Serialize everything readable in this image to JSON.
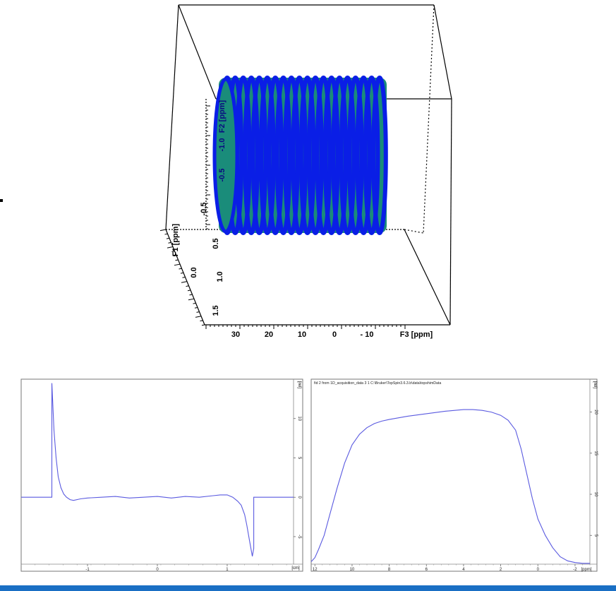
{
  "colors": {
    "cylinder_blue": "#0a1ee6",
    "cylinder_teal": "#1a8c7a",
    "trace_blue": "#5a5ae0",
    "accent_bar": "#1a6fc4"
  },
  "chart_data": [
    {
      "type": "surface-3d",
      "title": "",
      "axes": {
        "f3": {
          "label": "F3 [ppm]",
          "ticks": [
            "30",
            "20",
            "10",
            "0",
            "- 10"
          ]
        },
        "f1": {
          "label": "F1 [ppm]",
          "ticks": [
            "-0.5",
            "0.0",
            "0.5",
            "1.0",
            "1.5"
          ]
        },
        "f2": {
          "label": "F2 [ppm]",
          "ticks": [
            "-1.0",
            "-0.5"
          ]
        }
      },
      "ring_count": 20
    },
    {
      "type": "line",
      "title": "",
      "xlabel": "[cm]",
      "ylabel": "[rel]",
      "xlim": [
        -1.95,
        1.95
      ],
      "ylim": [
        -8.5,
        15
      ],
      "xticks": [
        -1,
        0,
        1
      ],
      "xtick_labels": [
        "-1",
        "0",
        "1"
      ],
      "yticks": [
        -5,
        0,
        5,
        10
      ],
      "ytick_labels": [
        "-5",
        "0",
        "5",
        "10"
      ],
      "series": [
        {
          "x": [
            -1.95,
            -1.51,
            -1.51,
            -1.48,
            -1.45,
            -1.42,
            -1.38,
            -1.34,
            -1.3,
            -1.25,
            -1.2,
            -1.1,
            -1.0,
            -0.8,
            -0.6,
            -0.4,
            -0.2,
            0.0,
            0.2,
            0.4,
            0.6,
            0.8,
            0.9,
            1.0,
            1.08,
            1.15,
            1.2,
            1.25,
            1.28,
            1.32,
            1.36,
            1.38,
            1.38,
            1.4,
            1.95
          ],
          "y": [
            0,
            0,
            14.5,
            8.5,
            5.0,
            2.6,
            1.2,
            0.4,
            0.0,
            -0.3,
            -0.4,
            -0.2,
            -0.1,
            0.0,
            0.1,
            -0.1,
            0.0,
            0.1,
            -0.1,
            0.1,
            0.0,
            0.2,
            0.3,
            0.3,
            0.0,
            -0.5,
            -1.0,
            -2.2,
            -3.5,
            -5.5,
            -7.5,
            -6.5,
            0.0,
            0.0,
            0.0
          ]
        }
      ]
    },
    {
      "type": "line",
      "title": "fid 2 from 1D_acquisition_data  3  1  C:\\Bruker\\TopSpin3.6.3.b\\data\\topshimData",
      "xlabel": "ppm",
      "ylabel": "[rel]",
      "xlim": [
        12.2,
        -2.8
      ],
      "ylim": [
        1.5,
        24
      ],
      "xticks": [
        12,
        10,
        8,
        6,
        4,
        2,
        0,
        -2
      ],
      "xtick_labels": [
        "12",
        "10",
        "8",
        "6",
        "4",
        "2",
        "0",
        "-2"
      ],
      "yticks": [
        5,
        10,
        15,
        20
      ],
      "ytick_labels": [
        "5",
        "10",
        "15",
        "20"
      ],
      "series": [
        {
          "x": [
            12.2,
            12.0,
            11.8,
            11.5,
            11.2,
            10.8,
            10.4,
            10.0,
            9.6,
            9.2,
            8.8,
            8.4,
            8.0,
            7.0,
            6.0,
            5.0,
            4.0,
            3.5,
            3.0,
            2.5,
            2.0,
            1.6,
            1.2,
            0.9,
            0.6,
            0.3,
            0.0,
            -0.4,
            -0.8,
            -1.2,
            -1.6,
            -2.0,
            -2.4,
            -2.8
          ],
          "y": [
            1.8,
            2.3,
            3.3,
            5.0,
            7.5,
            10.8,
            13.8,
            16.0,
            17.3,
            18.1,
            18.6,
            18.9,
            19.1,
            19.5,
            19.8,
            20.1,
            20.3,
            20.3,
            20.2,
            20.0,
            19.6,
            19.0,
            17.8,
            15.5,
            12.5,
            9.5,
            7.0,
            5.0,
            3.5,
            2.4,
            1.9,
            1.7,
            1.6,
            1.6
          ]
        }
      ]
    }
  ]
}
